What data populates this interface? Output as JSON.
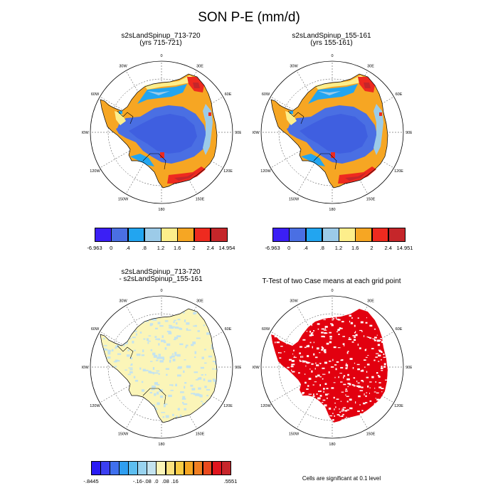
{
  "title": "SON P-E (mm/d)",
  "panels": [
    {
      "id": "p1",
      "title_line1": "s2sLandSpinup_713-720",
      "title_line2": "(yrs 715-721)",
      "type": "field"
    },
    {
      "id": "p2",
      "title_line1": "s2sLandSpinup_155-161",
      "title_line2": "(yrs 155-161)",
      "type": "field"
    },
    {
      "id": "p3",
      "title_line1": "s2sLandSpinup_713-720",
      "title_line2": "- s2sLandSpinup_155-161",
      "type": "diff"
    },
    {
      "id": "p4",
      "title_line1": "T-Test of two Case means at each grid point",
      "title_line2": "",
      "type": "ttest"
    }
  ],
  "lon_labels": [
    "0",
    "30E",
    "60E",
    "90E",
    "120E",
    "150E",
    "180",
    "150W",
    "120W",
    "90W",
    "60W",
    "30W"
  ],
  "colorbars": [
    {
      "id": "cb1",
      "colors": [
        "#3b1ff5",
        "#4a6fe3",
        "#22a5f0",
        "#9ccbe8",
        "#fdee8b",
        "#f6a623",
        "#ee2a1f",
        "#c5262a"
      ],
      "labels": [
        "-6.963",
        "0",
        ".4",
        ".8",
        "1.2",
        "1.6",
        "2",
        "2.4",
        "14.954"
      ]
    },
    {
      "id": "cb2",
      "colors": [
        "#3b1ff5",
        "#4a6fe3",
        "#22a5f0",
        "#9ccbe8",
        "#fdee8b",
        "#f6a623",
        "#ee2a1f",
        "#c5262a"
      ],
      "labels": [
        "-6.963",
        "0",
        ".4",
        ".8",
        "1.2",
        "1.6",
        "2",
        "2.4",
        "14.951"
      ]
    },
    {
      "id": "cb3",
      "colors": [
        "#2a1cf5",
        "#3b3ff2",
        "#3f70ee",
        "#2f9ef0",
        "#5dbef0",
        "#99d3ef",
        "#c4e3ef",
        "#fbf5b8",
        "#fce27f",
        "#f9cc45",
        "#f5a623",
        "#f07f22",
        "#ea4a1e",
        "#e0151e",
        "#c7262b"
      ],
      "labels": [
        "-.8445",
        "-.16",
        "-.08",
        ".0",
        ".08",
        ".16",
        ".5551"
      ]
    }
  ],
  "footnote": "Cells are significant at 0.1 level",
  "colors": {
    "ttest_fill": "#e2000f",
    "coast": "#000000"
  }
}
